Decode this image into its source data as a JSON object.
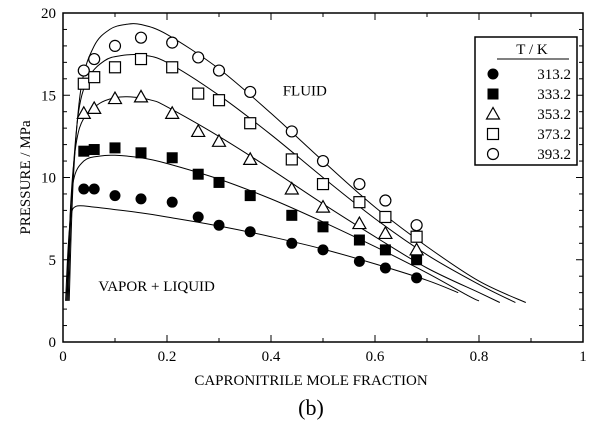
{
  "chart_data": {
    "type": "scatter",
    "xlabel": "CAPRONITRILE  MOLE FRACTION",
    "ylabel": "PRESSURE / MPa",
    "xlim": [
      0,
      1
    ],
    "ylim": [
      0,
      20
    ],
    "x_ticks": [
      "0",
      "0.2",
      "0.4",
      "0.6",
      "0.8",
      "1"
    ],
    "y_ticks": [
      "0",
      "5",
      "10",
      "15",
      "20"
    ],
    "grid": false,
    "legend": {
      "title": "T / K",
      "placement": "top-right"
    },
    "annotations": [
      "FLUID",
      "VAPOR + LIQUID"
    ],
    "caption": "(b)",
    "series": [
      {
        "name": "313.2",
        "marker": "filled-circle",
        "points": [
          [
            0.04,
            9.3
          ],
          [
            0.06,
            9.3
          ],
          [
            0.1,
            8.9
          ],
          [
            0.15,
            8.7
          ],
          [
            0.21,
            8.5
          ],
          [
            0.26,
            7.6
          ],
          [
            0.3,
            7.1
          ],
          [
            0.36,
            6.7
          ],
          [
            0.44,
            6.0
          ],
          [
            0.5,
            5.6
          ],
          [
            0.57,
            4.9
          ],
          [
            0.62,
            4.5
          ],
          [
            0.68,
            3.9
          ]
        ],
        "curve": [
          [
            0.005,
            2.5
          ],
          [
            0.01,
            5.8
          ],
          [
            0.015,
            7.6
          ],
          [
            0.025,
            8.25
          ],
          [
            0.06,
            8.2
          ],
          [
            0.1,
            8.05
          ],
          [
            0.15,
            7.85
          ],
          [
            0.2,
            7.6
          ],
          [
            0.3,
            7.05
          ],
          [
            0.4,
            6.4
          ],
          [
            0.5,
            5.65
          ],
          [
            0.6,
            4.75
          ],
          [
            0.7,
            3.75
          ],
          [
            0.76,
            3.0
          ]
        ]
      },
      {
        "name": "333.2",
        "marker": "filled-square",
        "points": [
          [
            0.04,
            11.6
          ],
          [
            0.06,
            11.7
          ],
          [
            0.1,
            11.8
          ],
          [
            0.15,
            11.5
          ],
          [
            0.21,
            11.2
          ],
          [
            0.26,
            10.2
          ],
          [
            0.3,
            9.7
          ],
          [
            0.36,
            8.9
          ],
          [
            0.44,
            7.7
          ],
          [
            0.5,
            7.0
          ],
          [
            0.57,
            6.2
          ],
          [
            0.62,
            5.6
          ],
          [
            0.68,
            5.0
          ]
        ],
        "curve": [
          [
            0.007,
            2.5
          ],
          [
            0.012,
            6.5
          ],
          [
            0.02,
            9.8
          ],
          [
            0.04,
            11.0
          ],
          [
            0.07,
            11.3
          ],
          [
            0.1,
            11.35
          ],
          [
            0.15,
            11.2
          ],
          [
            0.2,
            10.85
          ],
          [
            0.3,
            9.9
          ],
          [
            0.4,
            8.7
          ],
          [
            0.5,
            7.3
          ],
          [
            0.6,
            5.8
          ],
          [
            0.7,
            4.2
          ],
          [
            0.78,
            2.8
          ],
          [
            0.8,
            2.5
          ]
        ]
      },
      {
        "name": "353.2",
        "marker": "open-triangle",
        "points": [
          [
            0.04,
            13.9
          ],
          [
            0.06,
            14.2
          ],
          [
            0.1,
            14.8
          ],
          [
            0.15,
            14.9
          ],
          [
            0.21,
            13.9
          ],
          [
            0.26,
            12.8
          ],
          [
            0.3,
            12.2
          ],
          [
            0.36,
            11.1
          ],
          [
            0.44,
            9.3
          ],
          [
            0.5,
            8.2
          ],
          [
            0.57,
            7.2
          ],
          [
            0.62,
            6.6
          ],
          [
            0.68,
            5.6
          ]
        ],
        "curve": [
          [
            0.008,
            2.5
          ],
          [
            0.015,
            8.5
          ],
          [
            0.025,
            12.0
          ],
          [
            0.04,
            13.6
          ],
          [
            0.07,
            14.5
          ],
          [
            0.1,
            14.85
          ],
          [
            0.13,
            14.9
          ],
          [
            0.17,
            14.7
          ],
          [
            0.2,
            14.3
          ],
          [
            0.3,
            12.5
          ],
          [
            0.4,
            10.5
          ],
          [
            0.5,
            8.4
          ],
          [
            0.6,
            6.4
          ],
          [
            0.7,
            4.5
          ],
          [
            0.8,
            3.0
          ],
          [
            0.84,
            2.4
          ]
        ]
      },
      {
        "name": "373.2",
        "marker": "open-square",
        "points": [
          [
            0.04,
            15.7
          ],
          [
            0.06,
            16.1
          ],
          [
            0.1,
            16.7
          ],
          [
            0.15,
            17.2
          ],
          [
            0.21,
            16.7
          ],
          [
            0.26,
            15.1
          ],
          [
            0.3,
            14.7
          ],
          [
            0.36,
            13.3
          ],
          [
            0.44,
            11.1
          ],
          [
            0.5,
            9.6
          ],
          [
            0.57,
            8.5
          ],
          [
            0.62,
            7.6
          ],
          [
            0.68,
            6.4
          ]
        ],
        "curve": [
          [
            0.01,
            2.5
          ],
          [
            0.017,
            9.0
          ],
          [
            0.03,
            14.0
          ],
          [
            0.05,
            16.1
          ],
          [
            0.08,
            17.1
          ],
          [
            0.11,
            17.4
          ],
          [
            0.15,
            17.45
          ],
          [
            0.2,
            17.0
          ],
          [
            0.3,
            15.0
          ],
          [
            0.4,
            12.6
          ],
          [
            0.5,
            10.0
          ],
          [
            0.6,
            7.5
          ],
          [
            0.7,
            5.3
          ],
          [
            0.8,
            3.5
          ],
          [
            0.87,
            2.4
          ]
        ]
      },
      {
        "name": "393.2",
        "marker": "open-circle",
        "points": [
          [
            0.04,
            16.5
          ],
          [
            0.06,
            17.2
          ],
          [
            0.1,
            18.0
          ],
          [
            0.15,
            18.5
          ],
          [
            0.21,
            18.2
          ],
          [
            0.26,
            17.3
          ],
          [
            0.3,
            16.5
          ],
          [
            0.36,
            15.2
          ],
          [
            0.44,
            12.8
          ],
          [
            0.5,
            11.0
          ],
          [
            0.57,
            9.6
          ],
          [
            0.62,
            8.6
          ],
          [
            0.68,
            7.1
          ]
        ],
        "curve": [
          [
            0.012,
            2.5
          ],
          [
            0.02,
            10.0
          ],
          [
            0.035,
            15.5
          ],
          [
            0.06,
            18.0
          ],
          [
            0.09,
            19.0
          ],
          [
            0.12,
            19.3
          ],
          [
            0.15,
            19.3
          ],
          [
            0.2,
            18.7
          ],
          [
            0.3,
            16.6
          ],
          [
            0.4,
            13.9
          ],
          [
            0.5,
            11.0
          ],
          [
            0.6,
            8.2
          ],
          [
            0.7,
            5.8
          ],
          [
            0.8,
            3.7
          ],
          [
            0.89,
            2.4
          ]
        ]
      }
    ]
  }
}
